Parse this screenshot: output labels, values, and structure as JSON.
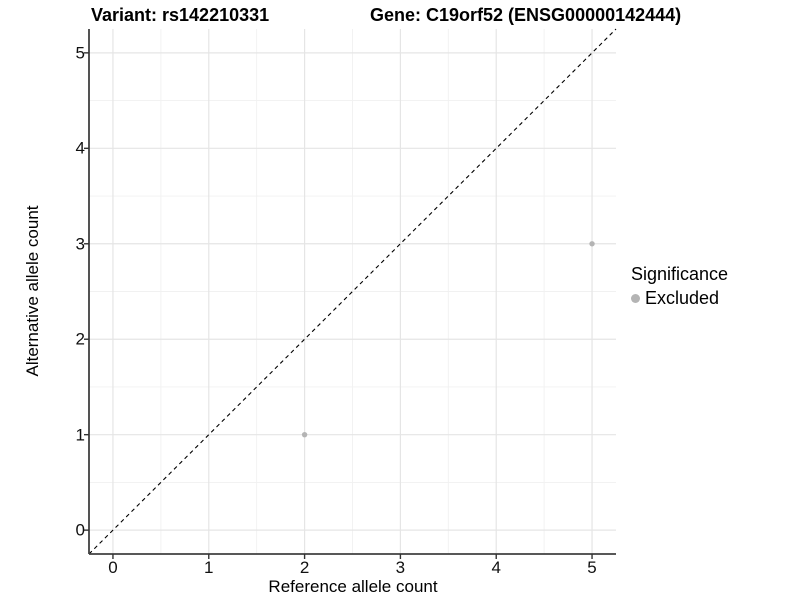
{
  "chart_data": {
    "type": "scatter",
    "title_left": "Variant: rs142210331",
    "title_right": "Gene: C19orf52 (ENSG00000142444)",
    "xlabel": "Reference allele count",
    "ylabel": "Alternative allele count",
    "xlim": [
      -0.25,
      5.25
    ],
    "ylim": [
      -0.25,
      5.25
    ],
    "x_ticks": [
      0,
      1,
      2,
      3,
      4,
      5
    ],
    "y_ticks": [
      0,
      1,
      2,
      3,
      4,
      5
    ],
    "minor_ticks": [
      0.5,
      1.5,
      2.5,
      3.5,
      4.5
    ],
    "grid": true,
    "identity_line": {
      "equation": "y = x",
      "style": "dashed",
      "color": "#000000"
    },
    "series": [
      {
        "name": "Excluded",
        "color": "#b4b4b4",
        "points": [
          {
            "x": 2,
            "y": 1
          },
          {
            "x": 5,
            "y": 3
          }
        ]
      }
    ],
    "legend": {
      "title": "Significance",
      "position": "right",
      "items": [
        {
          "label": "Excluded",
          "color": "#b4b4b4"
        }
      ]
    },
    "colors": {
      "background": "#ffffff",
      "axis_line": "#404040",
      "tick_mark": "#333333",
      "grid_major": "#e5e5e5",
      "grid_minor": "#f1f1f1",
      "point": "#b4b4b4",
      "text": "#000000"
    }
  }
}
